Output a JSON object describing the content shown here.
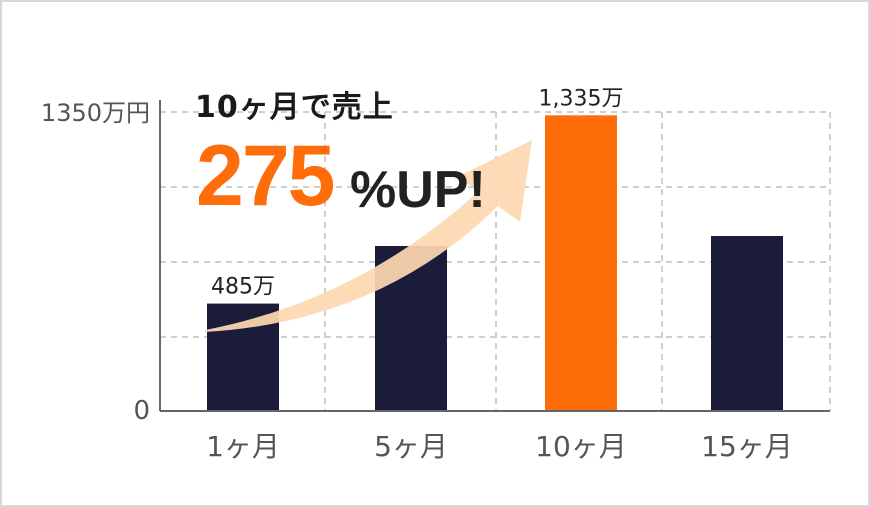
{
  "colors": {
    "bar": "#1b1b3a",
    "highlight": "#ff6c0a",
    "arrow": "#fed8b1",
    "grid": "#cfcfcf",
    "axis": "#666666",
    "label": "#555555"
  },
  "headline": {
    "line1": "10ヶ月で売上",
    "percent": "275",
    "suffix": "%UP!"
  },
  "chart_data": {
    "type": "bar",
    "categories": [
      "1ヶ月",
      "5ヶ月",
      "10ヶ月",
      "15ヶ月"
    ],
    "values": [
      485,
      745,
      1335,
      790
    ],
    "highlight_index": 2,
    "data_labels": [
      "485万",
      "",
      "1,335万",
      ""
    ],
    "y_ticks": [
      "0",
      "1350万円"
    ],
    "ylim": [
      0,
      1350
    ],
    "grid": true,
    "annotation": "arrow from 1ヶ月 bar rising to 10ヶ月 bar"
  }
}
